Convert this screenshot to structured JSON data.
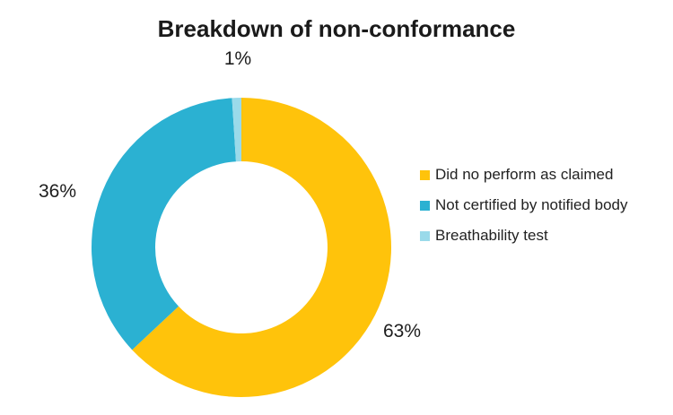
{
  "chart_data": {
    "type": "pie",
    "subtype": "donut",
    "title": "Breakdown of non-conformance",
    "categories": [
      "Did no perform as claimed",
      "Not certified by notified body",
      "Breathability test"
    ],
    "values": [
      63,
      36,
      1
    ],
    "value_unit": "percent",
    "data_labels": [
      "63%",
      "36%",
      "1%"
    ],
    "colors": [
      "#FFC30B",
      "#2BB1D2",
      "#9ADAEA"
    ],
    "hole_ratio": 0.575,
    "start_angle_deg": 0,
    "direction": "clockwise",
    "legend_position": "right",
    "data_label_position": "outside-end",
    "title_color": "#1a1a1a",
    "label_color": "#1d1d1d",
    "background": "#ffffff"
  }
}
